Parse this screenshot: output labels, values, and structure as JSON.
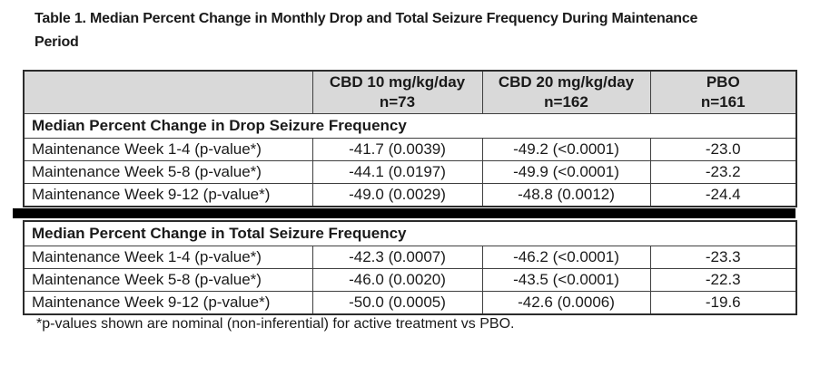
{
  "title": {
    "line1": "Table 1. Median Percent Change in Monthly Drop and Total Seizure Frequency During Maintenance",
    "line2": "Period"
  },
  "table": {
    "columns": [
      {
        "line1": "",
        "line2": ""
      },
      {
        "line1": "CBD 10 mg/kg/day",
        "line2": "n=73"
      },
      {
        "line1": "CBD 20 mg/kg/day",
        "line2": "n=162"
      },
      {
        "line1": "PBO",
        "line2": "n=161"
      }
    ],
    "sections": [
      {
        "header": "Median Percent Change in Drop Seizure Frequency",
        "rows": [
          {
            "label": "Maintenance Week 1-4 (p-value*)",
            "values": [
              "-41.7 (0.0039)",
              "-49.2 (<0.0001)",
              "-23.0"
            ]
          },
          {
            "label": "Maintenance Week 5-8 (p-value*)",
            "values": [
              "-44.1 (0.0197)",
              "-49.9 (<0.0001)",
              "-23.2"
            ]
          },
          {
            "label": "Maintenance Week 9-12 (p-value*)",
            "values": [
              "-49.0 (0.0029)",
              "-48.8 (0.0012)",
              "-24.4"
            ]
          }
        ]
      },
      {
        "header": "Median Percent Change in Total Seizure Frequency",
        "rows": [
          {
            "label": "Maintenance Week 1-4 (p-value*)",
            "values": [
              "-42.3 (0.0007)",
              "-46.2 (<0.0001)",
              "-23.3"
            ]
          },
          {
            "label": "Maintenance Week 5-8 (p-value*)",
            "values": [
              "-46.0 (0.0020)",
              "-43.5 (<0.0001)",
              "-22.3"
            ]
          },
          {
            "label": "Maintenance Week 9-12 (p-value*)",
            "values": [
              "-50.0 (0.0005)",
              "-42.6 (0.0006)",
              "-19.6"
            ]
          }
        ]
      }
    ],
    "footnote": "*p-values shown are nominal (non-inferential) for active treatment vs PBO."
  },
  "colors": {
    "header_bg": "#d9d9d9",
    "border": "#3f3f3f",
    "outer_border": "#2b2b2b",
    "divider": "#000000",
    "text": "#1a1a1a",
    "background": "#ffffff"
  }
}
